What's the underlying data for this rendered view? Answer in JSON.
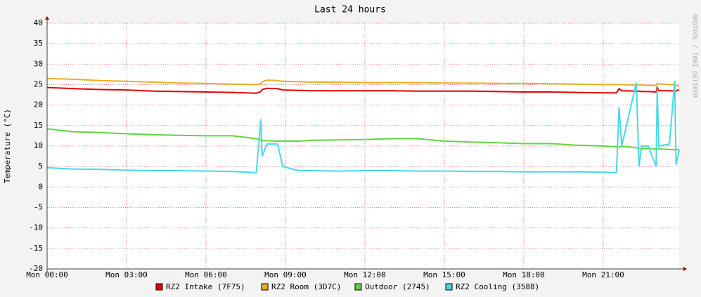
{
  "chart_data": {
    "type": "line",
    "title": "Last 24 hours",
    "y_label": "Temperature (°C)",
    "watermark": "RRDTOOL / TOBI OETIKER",
    "x": [
      0,
      1,
      2,
      3,
      4,
      5,
      6,
      7,
      7.9,
      8.07,
      8.12,
      8.3,
      8.7,
      8.9,
      9.5,
      10,
      11,
      12,
      13,
      14,
      15,
      16,
      17,
      18,
      19,
      20,
      21,
      21.5,
      21.6,
      21.7,
      22.25,
      22.35,
      22.45,
      22.7,
      23.0,
      23.04,
      23.1,
      23.5,
      23.7,
      23.75,
      23.87
    ],
    "series": [
      {
        "name": "RZ2 Intake (7F75)",
        "color": "#e80000",
        "values": [
          24.3,
          24,
          23.8,
          23.7,
          23.4,
          23.3,
          23.2,
          23.1,
          22.9,
          23.3,
          23.8,
          24.1,
          24,
          23.7,
          23.6,
          23.5,
          23.5,
          23.5,
          23.5,
          23.4,
          23.4,
          23.4,
          23.3,
          23.2,
          23.2,
          23.1,
          23,
          23,
          24,
          23.5,
          23.4,
          23.4,
          23.3,
          23.3,
          23.2,
          24.3,
          23.5,
          23.5,
          23.4,
          23.4,
          23.8
        ]
      },
      {
        "name": "RZ2 Room (3D7C)",
        "color": "#e8b020",
        "values": [
          26.5,
          26.3,
          26,
          25.8,
          25.6,
          25.4,
          25.3,
          25.1,
          25,
          25.2,
          25.7,
          26.1,
          26,
          25.8,
          25.7,
          25.6,
          25.6,
          25.5,
          25.5,
          25.5,
          25.4,
          25.4,
          25.3,
          25.3,
          25.2,
          25.1,
          25,
          25,
          25,
          25,
          24.9,
          24.9,
          24.9,
          24.8,
          24.8,
          25.3,
          25.2,
          25,
          25,
          24.8,
          24.6
        ]
      },
      {
        "name": "Outdoor (2745)",
        "color": "#5fd640",
        "values": [
          14.2,
          13.5,
          13.3,
          13,
          12.8,
          12.6,
          12.5,
          12.5,
          11.8,
          11.5,
          11.3,
          11.3,
          11.2,
          11.2,
          11.2,
          11.4,
          11.5,
          11.6,
          11.8,
          11.8,
          11.2,
          11,
          10.8,
          10.6,
          10.6,
          10.2,
          10,
          9.8,
          9.8,
          9.9,
          9.6,
          9.4,
          9.3,
          9.4,
          9.3,
          9.3,
          9.3,
          9.2,
          9.1,
          9.1,
          9.1
        ]
      },
      {
        "name": "RZ2 Cooling (3588)",
        "color": "#4ad8e8",
        "values": [
          4.7,
          4.4,
          4.3,
          4.1,
          4,
          4,
          3.9,
          3.8,
          3.5,
          16.5,
          7.5,
          10.5,
          10.5,
          5,
          4,
          4,
          3.9,
          4,
          4,
          3.9,
          3.9,
          3.8,
          3.8,
          3.7,
          3.7,
          3.7,
          3.6,
          3.5,
          19.5,
          10,
          25.5,
          5,
          10,
          10,
          5,
          24,
          10,
          10.5,
          26,
          5.5,
          9
        ]
      }
    ],
    "xlim": [
      0,
      23.87
    ],
    "xticks": [
      {
        "value": 0,
        "label": "Mon 00:00"
      },
      {
        "value": 3,
        "label": "Mon 03:00"
      },
      {
        "value": 6,
        "label": "Mon 06:00"
      },
      {
        "value": 9,
        "label": "Mon 09:00"
      },
      {
        "value": 12,
        "label": "Mon 12:00"
      },
      {
        "value": 15,
        "label": "Mon 15:00"
      },
      {
        "value": 18,
        "label": "Mon 18:00"
      },
      {
        "value": 21,
        "label": "Mon 21:00"
      }
    ],
    "ylim": [
      -20,
      40
    ],
    "yticks": [
      -20,
      -15,
      -10,
      -5,
      0,
      5,
      10,
      15,
      20,
      25,
      30,
      35,
      40
    ],
    "grid": true
  }
}
